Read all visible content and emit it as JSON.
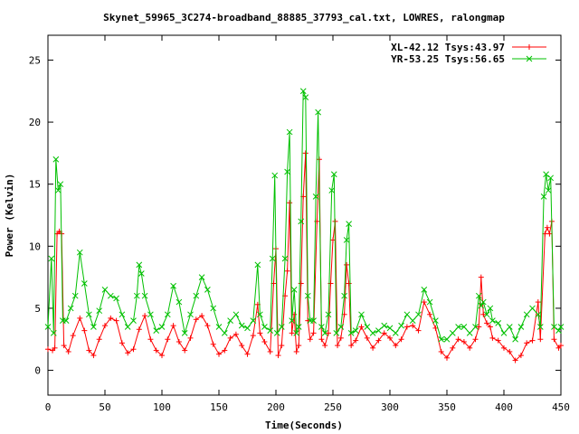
{
  "chart_data": {
    "type": "line",
    "title": "Skynet_59965_3C274-broadband_88885_37793_cal.txt, LOWRES, ralongmap",
    "xlabel": "Time(Seconds)",
    "ylabel": "Power (Kelvin)",
    "xlim": [
      0,
      450
    ],
    "ylim": [
      -2,
      27
    ],
    "xticks": [
      0,
      50,
      100,
      150,
      200,
      250,
      300,
      350,
      400,
      450
    ],
    "yticks": [
      0,
      5,
      10,
      15,
      20,
      25
    ],
    "legend_position": "top-right",
    "grid": false,
    "series": [
      {
        "name": "XL-42.12 Tsys:43.97",
        "color": "#ff0000",
        "marker": "plus",
        "points": [
          [
            0,
            1.7
          ],
          [
            4,
            1.6
          ],
          [
            6,
            1.8
          ],
          [
            8,
            11
          ],
          [
            10,
            11.2
          ],
          [
            12,
            11
          ],
          [
            14,
            2
          ],
          [
            18,
            1.5
          ],
          [
            22,
            2.8
          ],
          [
            28,
            4.2
          ],
          [
            32,
            3.2
          ],
          [
            36,
            1.6
          ],
          [
            40,
            1.2
          ],
          [
            45,
            2.5
          ],
          [
            50,
            3.6
          ],
          [
            55,
            4.2
          ],
          [
            60,
            4
          ],
          [
            65,
            2.2
          ],
          [
            70,
            1.4
          ],
          [
            75,
            1.7
          ],
          [
            80,
            3.3
          ],
          [
            85,
            4.4
          ],
          [
            90,
            2.5
          ],
          [
            95,
            1.6
          ],
          [
            100,
            1.2
          ],
          [
            105,
            2.5
          ],
          [
            110,
            3.6
          ],
          [
            115,
            2.3
          ],
          [
            120,
            1.6
          ],
          [
            125,
            2.6
          ],
          [
            130,
            4.1
          ],
          [
            135,
            4.4
          ],
          [
            140,
            3.6
          ],
          [
            145,
            2.1
          ],
          [
            150,
            1.3
          ],
          [
            155,
            1.6
          ],
          [
            160,
            2.6
          ],
          [
            165,
            2.9
          ],
          [
            170,
            2
          ],
          [
            175,
            1.3
          ],
          [
            180,
            2.8
          ],
          [
            184,
            5.3
          ],
          [
            186,
            3
          ],
          [
            190,
            2.3
          ],
          [
            195,
            1.5
          ],
          [
            198,
            7
          ],
          [
            200,
            9.8
          ],
          [
            202,
            1.2
          ],
          [
            205,
            2
          ],
          [
            208,
            6
          ],
          [
            210,
            8
          ],
          [
            212,
            13.5
          ],
          [
            214,
            3
          ],
          [
            216,
            4.5
          ],
          [
            218,
            1.5
          ],
          [
            220,
            2
          ],
          [
            222,
            7
          ],
          [
            224,
            14
          ],
          [
            226,
            17.5
          ],
          [
            228,
            4
          ],
          [
            230,
            2.5
          ],
          [
            233,
            3
          ],
          [
            236,
            12
          ],
          [
            238,
            17
          ],
          [
            240,
            2.5
          ],
          [
            243,
            2
          ],
          [
            246,
            3
          ],
          [
            248,
            7
          ],
          [
            250,
            10.5
          ],
          [
            252,
            12
          ],
          [
            254,
            2
          ],
          [
            257,
            2.6
          ],
          [
            260,
            4.5
          ],
          [
            262,
            8.5
          ],
          [
            264,
            7
          ],
          [
            266,
            2
          ],
          [
            270,
            2.4
          ],
          [
            275,
            3.5
          ],
          [
            280,
            2.6
          ],
          [
            285,
            1.8
          ],
          [
            290,
            2.4
          ],
          [
            295,
            3
          ],
          [
            300,
            2.6
          ],
          [
            305,
            2
          ],
          [
            310,
            2.5
          ],
          [
            315,
            3.5
          ],
          [
            320,
            3.6
          ],
          [
            325,
            3.2
          ],
          [
            330,
            5.5
          ],
          [
            335,
            4.5
          ],
          [
            340,
            3.4
          ],
          [
            345,
            1.5
          ],
          [
            350,
            1
          ],
          [
            355,
            1.8
          ],
          [
            360,
            2.5
          ],
          [
            365,
            2.3
          ],
          [
            370,
            1.8
          ],
          [
            375,
            2.5
          ],
          [
            378,
            3.5
          ],
          [
            380,
            7.5
          ],
          [
            382,
            4.5
          ],
          [
            385,
            3.8
          ],
          [
            388,
            3.5
          ],
          [
            390,
            2.6
          ],
          [
            395,
            2.4
          ],
          [
            400,
            1.8
          ],
          [
            405,
            1.5
          ],
          [
            410,
            0.8
          ],
          [
            415,
            1.2
          ],
          [
            420,
            2.2
          ],
          [
            425,
            2.4
          ],
          [
            430,
            5.5
          ],
          [
            432,
            2.5
          ],
          [
            436,
            11
          ],
          [
            438,
            11.5
          ],
          [
            440,
            11
          ],
          [
            442,
            12
          ],
          [
            444,
            2.5
          ],
          [
            448,
            1.8
          ],
          [
            450,
            2
          ]
        ]
      },
      {
        "name": "YR-53.25 Tsys:56.65",
        "color": "#00c000",
        "marker": "x",
        "points": [
          [
            0,
            3.5
          ],
          [
            3,
            9
          ],
          [
            5,
            3
          ],
          [
            7,
            17
          ],
          [
            9,
            14.5
          ],
          [
            11,
            15
          ],
          [
            13,
            4
          ],
          [
            16,
            4
          ],
          [
            20,
            5
          ],
          [
            24,
            6
          ],
          [
            28,
            9.5
          ],
          [
            32,
            7
          ],
          [
            36,
            4.5
          ],
          [
            40,
            3.5
          ],
          [
            45,
            4.8
          ],
          [
            50,
            6.5
          ],
          [
            55,
            6
          ],
          [
            60,
            5.8
          ],
          [
            65,
            4.5
          ],
          [
            70,
            3.5
          ],
          [
            75,
            4
          ],
          [
            78,
            6
          ],
          [
            80,
            8.5
          ],
          [
            82,
            7.8
          ],
          [
            85,
            6
          ],
          [
            90,
            4.5
          ],
          [
            95,
            3.2
          ],
          [
            100,
            3.5
          ],
          [
            105,
            4.5
          ],
          [
            110,
            6.8
          ],
          [
            115,
            5.5
          ],
          [
            120,
            3
          ],
          [
            125,
            4.5
          ],
          [
            130,
            6
          ],
          [
            135,
            7.5
          ],
          [
            140,
            6.5
          ],
          [
            145,
            5
          ],
          [
            150,
            3.5
          ],
          [
            155,
            3
          ],
          [
            160,
            4
          ],
          [
            165,
            4.5
          ],
          [
            170,
            3.6
          ],
          [
            175,
            3.4
          ],
          [
            180,
            4
          ],
          [
            184,
            8.5
          ],
          [
            186,
            4.5
          ],
          [
            190,
            3.5
          ],
          [
            195,
            3.2
          ],
          [
            197,
            9
          ],
          [
            199,
            15.7
          ],
          [
            201,
            3
          ],
          [
            205,
            3.5
          ],
          [
            208,
            9
          ],
          [
            210,
            16
          ],
          [
            212,
            19.2
          ],
          [
            214,
            4
          ],
          [
            216,
            6.5
          ],
          [
            218,
            3
          ],
          [
            220,
            3.5
          ],
          [
            222,
            12
          ],
          [
            224,
            22.5
          ],
          [
            226,
            22
          ],
          [
            228,
            6
          ],
          [
            230,
            4
          ],
          [
            233,
            4
          ],
          [
            235,
            14
          ],
          [
            237,
            20.8
          ],
          [
            240,
            3.5
          ],
          [
            243,
            3
          ],
          [
            246,
            4.5
          ],
          [
            249,
            14.5
          ],
          [
            251,
            15.8
          ],
          [
            253,
            3
          ],
          [
            257,
            3.5
          ],
          [
            260,
            6
          ],
          [
            262,
            10.5
          ],
          [
            264,
            11.8
          ],
          [
            266,
            3
          ],
          [
            270,
            3.2
          ],
          [
            275,
            4.5
          ],
          [
            280,
            3.5
          ],
          [
            285,
            3
          ],
          [
            290,
            3.2
          ],
          [
            295,
            3.6
          ],
          [
            300,
            3.4
          ],
          [
            305,
            3
          ],
          [
            310,
            3.6
          ],
          [
            315,
            4.5
          ],
          [
            320,
            4
          ],
          [
            325,
            4.5
          ],
          [
            330,
            6.5
          ],
          [
            335,
            5.5
          ],
          [
            340,
            4
          ],
          [
            345,
            2.5
          ],
          [
            350,
            2.5
          ],
          [
            355,
            3
          ],
          [
            360,
            3.5
          ],
          [
            365,
            3.5
          ],
          [
            370,
            3
          ],
          [
            375,
            3.5
          ],
          [
            378,
            6
          ],
          [
            380,
            5.2
          ],
          [
            382,
            5.5
          ],
          [
            385,
            4.5
          ],
          [
            388,
            5
          ],
          [
            390,
            4
          ],
          [
            395,
            3.8
          ],
          [
            400,
            3
          ],
          [
            405,
            3.5
          ],
          [
            410,
            2.5
          ],
          [
            415,
            3.5
          ],
          [
            420,
            4.5
          ],
          [
            425,
            5
          ],
          [
            430,
            4.5
          ],
          [
            432,
            3.5
          ],
          [
            435,
            14
          ],
          [
            437,
            15.8
          ],
          [
            439,
            14.5
          ],
          [
            441,
            15.5
          ],
          [
            444,
            3.5
          ],
          [
            448,
            3.2
          ],
          [
            450,
            3.5
          ]
        ]
      }
    ]
  }
}
